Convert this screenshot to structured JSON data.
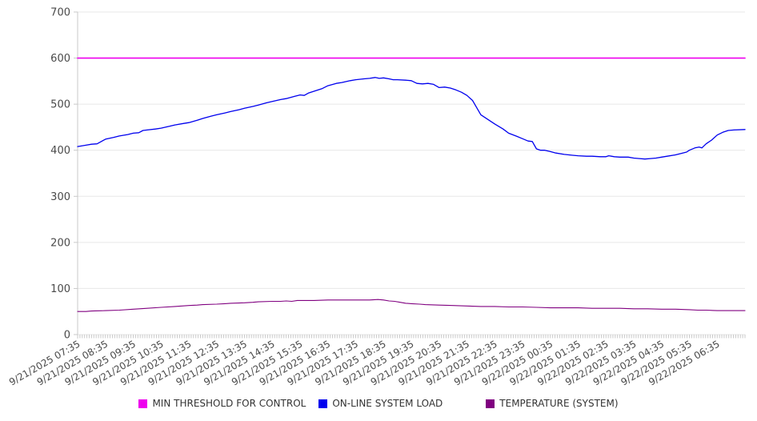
{
  "chart_data": {
    "type": "line",
    "title": "",
    "x_axis": {
      "labels": [
        "9/21/2025 07:35",
        "9/21/2025 08:35",
        "9/21/2025 09:35",
        "9/21/2025 10:35",
        "9/21/2025 11:35",
        "9/21/2025 12:35",
        "9/21/2025 13:35",
        "9/21/2025 14:35",
        "9/21/2025 15:35",
        "9/21/2025 16:35",
        "9/21/2025 17:35",
        "9/21/2025 18:35",
        "9/21/2025 19:35",
        "9/21/2025 20:35",
        "9/21/2025 21:35",
        "9/21/2025 22:35",
        "9/21/2025 23:35",
        "9/22/2025 00:35",
        "9/22/2025 01:35",
        "9/22/2025 02:35",
        "9/22/2025 03:35",
        "9/22/2025 04:35",
        "9/22/2025 05:35",
        "9/22/2025 06:35"
      ],
      "range_hours": [
        0,
        24
      ],
      "minor_tick_count": 288
    },
    "y_axis": {
      "min": 0,
      "max": 700,
      "step": 100
    },
    "grid": "horizontal",
    "legend_position": "bottom",
    "colors": {
      "grid": "#e7e7e7",
      "axis": "#c9c9c9",
      "tick_label": "#4a4a4a"
    },
    "series": [
      {
        "name": "MIN THRESHOLD FOR CONTROL",
        "color": "#ee00ee",
        "width": 1.6,
        "points": [
          [
            0,
            600
          ],
          [
            24,
            600
          ]
        ]
      },
      {
        "name": "ON-LINE SYSTEM LOAD",
        "color": "#0000ee",
        "width": 1.3,
        "points": [
          [
            0,
            408
          ],
          [
            0.3,
            411
          ],
          [
            0.5,
            413
          ],
          [
            0.7,
            414
          ],
          [
            1,
            424
          ],
          [
            1.3,
            428
          ],
          [
            1.5,
            431
          ],
          [
            1.8,
            434
          ],
          [
            2,
            437
          ],
          [
            2.2,
            438
          ],
          [
            2.35,
            443
          ],
          [
            2.5,
            444
          ],
          [
            2.8,
            446
          ],
          [
            3,
            448
          ],
          [
            3.3,
            452
          ],
          [
            3.5,
            455
          ],
          [
            3.8,
            458
          ],
          [
            4,
            460
          ],
          [
            4.3,
            465
          ],
          [
            4.5,
            469
          ],
          [
            4.8,
            474
          ],
          [
            5,
            477
          ],
          [
            5.3,
            481
          ],
          [
            5.5,
            484
          ],
          [
            5.8,
            488
          ],
          [
            6,
            491
          ],
          [
            6.3,
            495
          ],
          [
            6.5,
            498
          ],
          [
            6.8,
            503
          ],
          [
            7,
            506
          ],
          [
            7.3,
            510
          ],
          [
            7.5,
            512
          ],
          [
            7.8,
            517
          ],
          [
            8,
            520
          ],
          [
            8.15,
            519
          ],
          [
            8.3,
            524
          ],
          [
            8.5,
            528
          ],
          [
            8.8,
            534
          ],
          [
            9,
            540
          ],
          [
            9.3,
            545
          ],
          [
            9.5,
            547
          ],
          [
            9.8,
            551
          ],
          [
            10,
            553
          ],
          [
            10.3,
            555
          ],
          [
            10.5,
            556
          ],
          [
            10.7,
            558
          ],
          [
            10.85,
            556
          ],
          [
            11,
            557
          ],
          [
            11.2,
            555
          ],
          [
            11.35,
            553
          ],
          [
            11.5,
            553
          ],
          [
            11.8,
            552
          ],
          [
            12,
            551
          ],
          [
            12.2,
            545
          ],
          [
            12.4,
            544
          ],
          [
            12.6,
            545
          ],
          [
            12.8,
            543
          ],
          [
            13,
            536
          ],
          [
            13.2,
            537
          ],
          [
            13.4,
            535
          ],
          [
            13.6,
            531
          ],
          [
            13.8,
            526
          ],
          [
            14,
            519
          ],
          [
            14.2,
            508
          ],
          [
            14.5,
            477
          ],
          [
            14.8,
            465
          ],
          [
            15,
            457
          ],
          [
            15.3,
            446
          ],
          [
            15.5,
            437
          ],
          [
            15.8,
            430
          ],
          [
            16,
            425
          ],
          [
            16.2,
            420
          ],
          [
            16.35,
            419
          ],
          [
            16.5,
            403
          ],
          [
            16.65,
            400
          ],
          [
            16.8,
            400
          ],
          [
            17,
            397
          ],
          [
            17.2,
            394
          ],
          [
            17.5,
            391
          ],
          [
            17.8,
            389
          ],
          [
            18,
            388
          ],
          [
            18.3,
            387
          ],
          [
            18.5,
            387
          ],
          [
            18.8,
            386
          ],
          [
            19,
            386
          ],
          [
            19.1,
            388
          ],
          [
            19.3,
            386
          ],
          [
            19.5,
            385
          ],
          [
            19.8,
            385
          ],
          [
            20,
            383
          ],
          [
            20.2,
            382
          ],
          [
            20.4,
            381
          ],
          [
            20.6,
            382
          ],
          [
            20.8,
            383
          ],
          [
            21,
            385
          ],
          [
            21.2,
            387
          ],
          [
            21.5,
            390
          ],
          [
            21.7,
            393
          ],
          [
            21.9,
            396
          ],
          [
            22,
            400
          ],
          [
            22.2,
            405
          ],
          [
            22.35,
            407
          ],
          [
            22.45,
            405
          ],
          [
            22.6,
            414
          ],
          [
            22.8,
            422
          ],
          [
            23,
            433
          ],
          [
            23.2,
            439
          ],
          [
            23.4,
            443
          ],
          [
            23.6,
            444
          ],
          [
            24,
            445
          ]
        ]
      },
      {
        "name": "TEMPERATURE (SYSTEM)",
        "color": "#800080",
        "width": 1.1,
        "points": [
          [
            0,
            50
          ],
          [
            0.3,
            50
          ],
          [
            0.5,
            51
          ],
          [
            1,
            52
          ],
          [
            1.5,
            53
          ],
          [
            2,
            55
          ],
          [
            2.5,
            57
          ],
          [
            3,
            59
          ],
          [
            3.5,
            61
          ],
          [
            4,
            63
          ],
          [
            4.3,
            64
          ],
          [
            4.5,
            65
          ],
          [
            5,
            66
          ],
          [
            5.3,
            67
          ],
          [
            5.5,
            68
          ],
          [
            6,
            69
          ],
          [
            6.3,
            70
          ],
          [
            6.5,
            71
          ],
          [
            7,
            72
          ],
          [
            7.3,
            72
          ],
          [
            7.5,
            73
          ],
          [
            7.7,
            72
          ],
          [
            7.9,
            74
          ],
          [
            8,
            74
          ],
          [
            8.5,
            74
          ],
          [
            9,
            75
          ],
          [
            9.5,
            75
          ],
          [
            10,
            75
          ],
          [
            10.3,
            75
          ],
          [
            10.5,
            75
          ],
          [
            10.8,
            76
          ],
          [
            11,
            75
          ],
          [
            11.2,
            73
          ],
          [
            11.4,
            72
          ],
          [
            11.6,
            70
          ],
          [
            11.8,
            68
          ],
          [
            12,
            67
          ],
          [
            12.3,
            66
          ],
          [
            12.5,
            65
          ],
          [
            13,
            64
          ],
          [
            13.5,
            63
          ],
          [
            14,
            62
          ],
          [
            14.5,
            61
          ],
          [
            15,
            61
          ],
          [
            15.5,
            60
          ],
          [
            16,
            60
          ],
          [
            16.5,
            59
          ],
          [
            17,
            58
          ],
          [
            17.5,
            58
          ],
          [
            18,
            58
          ],
          [
            18.5,
            57
          ],
          [
            19,
            57
          ],
          [
            19.5,
            57
          ],
          [
            20,
            56
          ],
          [
            20.5,
            56
          ],
          [
            21,
            55
          ],
          [
            21.5,
            55
          ],
          [
            22,
            54
          ],
          [
            22.3,
            53
          ],
          [
            22.6,
            53
          ],
          [
            23,
            52
          ],
          [
            23.5,
            52
          ],
          [
            24,
            52
          ]
        ]
      }
    ]
  }
}
